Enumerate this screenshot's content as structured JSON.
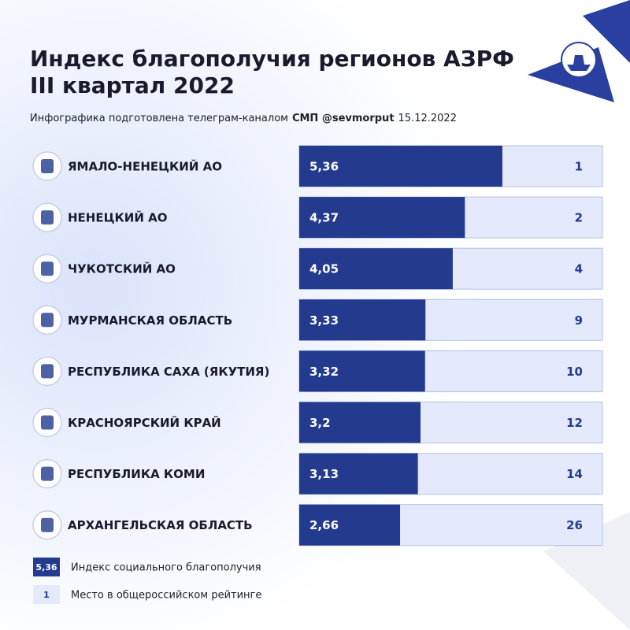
{
  "chart_data": {
    "type": "bar",
    "title": "Индекс благополучия регионов АЗРФ",
    "subtitle": "III квартал 2022",
    "caption": {
      "lead": "Инфографика подготовлена телеграм-каналом",
      "source": "СМП @sevmorput",
      "date": "15.12.2022"
    },
    "categories": [
      "ЯМАЛО-НЕНЕЦКИЙ АО",
      "НЕНЕЦКИЙ АО",
      "ЧУКОТСКИЙ АО",
      "МУРМАНСКАЯ ОБЛАСТЬ",
      "РЕСПУБЛИКА САХА (ЯКУТИЯ)",
      "КРАСНОЯРСКИЙ КРАЙ",
      "РЕСПУБЛИКА КОМИ",
      "АРХАНГЕЛЬСКАЯ ОБЛАСТЬ"
    ],
    "values": [
      5.36,
      4.37,
      4.05,
      3.33,
      3.32,
      3.2,
      3.13,
      2.66
    ],
    "value_labels": [
      "5,36",
      "4,37",
      "4,05",
      "3,33",
      "3,32",
      "3,2",
      "3,13",
      "2,66"
    ],
    "ranks": [
      1,
      2,
      4,
      9,
      10,
      12,
      14,
      26
    ],
    "xlim": [
      0,
      8
    ],
    "color": "#233a8f",
    "track_color": "#e4e9fb",
    "legend_labels": [
      "Индекс социального благополучия",
      "Место в общероссийском рейтинге"
    ]
  }
}
